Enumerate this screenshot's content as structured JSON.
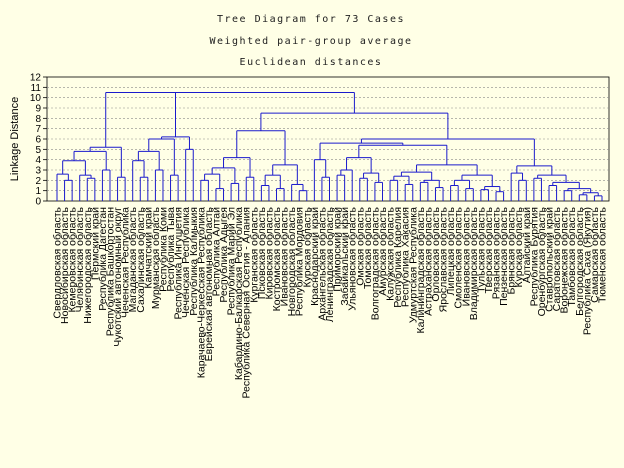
{
  "chart_data": {
    "type": "dendrogram",
    "title_lines": [
      "Tree Diagram for 73 Cases",
      "Weighted pair-group average",
      "Euclidean distances"
    ],
    "ylabel": "Linkage Distance",
    "ylim": [
      0,
      12
    ],
    "yticks": [
      0,
      1,
      2,
      3,
      4,
      5,
      6,
      7,
      8,
      9,
      10,
      11,
      12
    ],
    "grid": true,
    "leaf_labels": [
      "Свердловская область",
      "Новосибирская область",
      "Кемеровская область",
      "Челябинская область",
      "Нижегородская область",
      "Пермский край",
      "Республика Дагестан",
      "Республика Башкортостан",
      "Чукотский автономный округ",
      "Чеченская Республика",
      "Магаданская область",
      "Сахалинская область",
      "Камчатский край",
      "Мурманская область",
      "Республика Коми",
      "Республика Тыва",
      "Республика Ингушетия",
      "Чеченская Республика",
      "Республика Калмыкия",
      "Карачаево-Черкесская Республика",
      "Еврейская автономная область",
      "Республика Алтай",
      "Республика Адыгея",
      "Республика Марий Эл",
      "Кабардино-Балкарская Республика",
      "Республика Северная Осетия - Алания",
      "Курганская область",
      "Псковская область",
      "Кировская область",
      "Костромская область",
      "Ивановская область",
      "Новгородская область",
      "Республика Мордовия",
      "Курская область",
      "Краснодарский край",
      "Архангельская область",
      "Ленинградская область",
      "Приморский край",
      "Забайкальский край",
      "Ульяновская область",
      "Омская область",
      "Томская область",
      "Волгоградская область",
      "Амурская область",
      "Калужская область",
      "Республика Карелия",
      "Республика Хакасия",
      "Удмуртская Республика",
      "Калининградская область",
      "Астраханская область",
      "Орловская область",
      "Ярославская область",
      "Липецкая область",
      "Смоленская область",
      "Ивановская область",
      "Владимирская область",
      "Тульская область",
      "Тверская область",
      "Рязанская область",
      "Пензенская область",
      "Брянская область",
      "Курская область",
      "Алтайский край",
      "Республика Бурятия",
      "Оренбургская область",
      "Ставропольский край",
      "Саратовская область",
      "Воронежская область",
      "Тамбовская область",
      "Белгородская область",
      "Республика Саха (Якутия)",
      "Самарская область",
      "Тюменская область"
    ]
  }
}
